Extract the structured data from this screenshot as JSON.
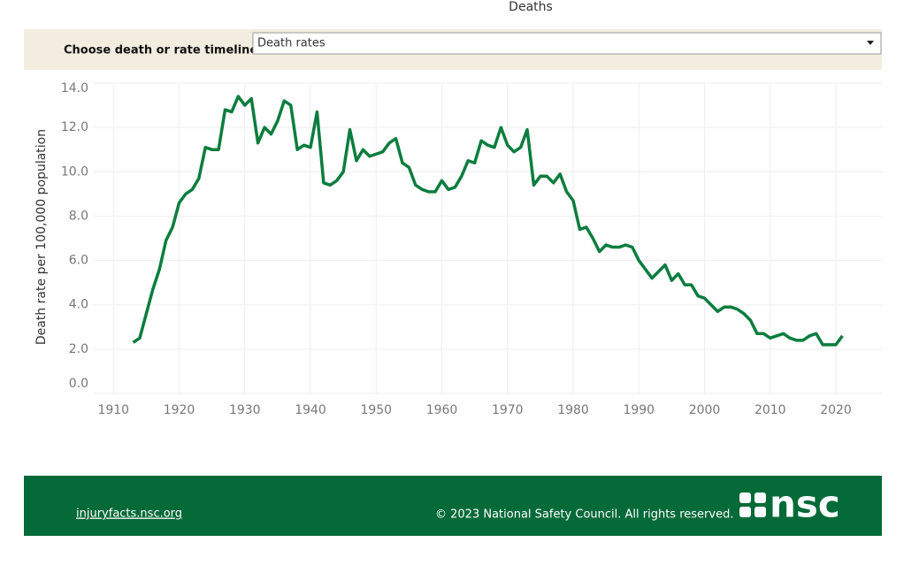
{
  "title": "Deaths",
  "control": {
    "label": "Choose death or rate timeline:",
    "value": "Death rates"
  },
  "chart_data": {
    "type": "line",
    "y_label": "Death rate per 100,000 population",
    "color": "#0b7d3e",
    "grid": true,
    "xlim": [
      1907,
      2027
    ],
    "xticks": [
      1910,
      1920,
      1930,
      1940,
      1950,
      1960,
      1970,
      1980,
      1990,
      2000,
      2010,
      2020
    ],
    "ylim": [
      0,
      14
    ],
    "yticks": [
      {
        "value": 0,
        "label": "0.0"
      },
      {
        "value": 2,
        "label": "2.0"
      },
      {
        "value": 4,
        "label": "4.0"
      },
      {
        "value": 6,
        "label": "6.0"
      },
      {
        "value": 8,
        "label": "8.0"
      },
      {
        "value": 10,
        "label": "10.0"
      },
      {
        "value": 12,
        "label": "12.0"
      },
      {
        "value": 14,
        "label": "14.0"
      }
    ],
    "x": [
      1913,
      1914,
      1915,
      1916,
      1917,
      1918,
      1919,
      1920,
      1921,
      1922,
      1923,
      1924,
      1925,
      1926,
      1927,
      1928,
      1929,
      1930,
      1931,
      1932,
      1933,
      1934,
      1935,
      1936,
      1937,
      1938,
      1939,
      1940,
      1941,
      1942,
      1943,
      1944,
      1945,
      1946,
      1947,
      1948,
      1949,
      1950,
      1951,
      1952,
      1953,
      1954,
      1955,
      1956,
      1957,
      1958,
      1959,
      1960,
      1961,
      1962,
      1963,
      1964,
      1965,
      1966,
      1967,
      1968,
      1969,
      1970,
      1971,
      1972,
      1973,
      1974,
      1975,
      1976,
      1977,
      1978,
      1979,
      1980,
      1981,
      1982,
      1983,
      1984,
      1985,
      1986,
      1987,
      1988,
      1989,
      1990,
      1991,
      1992,
      1993,
      1994,
      1995,
      1996,
      1997,
      1998,
      1999,
      2000,
      2001,
      2002,
      2003,
      2004,
      2005,
      2006,
      2007,
      2008,
      2009,
      2010,
      2011,
      2012,
      2013,
      2014,
      2015,
      2016,
      2017,
      2018,
      2019,
      2020,
      2021
    ],
    "values": [
      2.3,
      2.5,
      3.6,
      4.7,
      5.6,
      6.9,
      7.5,
      8.6,
      9.0,
      9.2,
      9.7,
      11.1,
      11.0,
      11.0,
      12.8,
      12.7,
      13.4,
      13.0,
      13.3,
      11.3,
      12.0,
      11.7,
      12.3,
      13.2,
      13.0,
      11.0,
      11.2,
      11.1,
      12.7,
      9.5,
      9.4,
      9.6,
      10.0,
      11.9,
      10.5,
      11.0,
      10.7,
      10.8,
      10.9,
      11.3,
      11.5,
      10.4,
      10.2,
      9.4,
      9.2,
      9.1,
      9.1,
      9.6,
      9.2,
      9.3,
      9.8,
      10.5,
      10.4,
      11.4,
      11.2,
      11.1,
      12.0,
      11.2,
      10.9,
      11.1,
      11.9,
      9.4,
      9.8,
      9.8,
      9.5,
      9.9,
      9.1,
      8.7,
      7.4,
      7.5,
      7.0,
      6.4,
      6.7,
      6.6,
      6.6,
      6.7,
      6.6,
      6.0,
      5.6,
      5.2,
      5.5,
      5.8,
      5.1,
      5.4,
      4.9,
      4.9,
      4.4,
      4.3,
      4.0,
      3.7,
      3.9,
      3.9,
      3.8,
      3.6,
      3.3,
      2.7,
      2.7,
      2.5,
      2.6,
      2.7,
      2.5,
      2.4,
      2.4,
      2.6,
      2.7,
      2.2,
      2.2,
      2.2,
      2.6
    ]
  },
  "footer": {
    "link": "injuryfacts.nsc.org",
    "copyright": "© 2023 National Safety Council. All rights reserved.",
    "logo": "nsc"
  }
}
